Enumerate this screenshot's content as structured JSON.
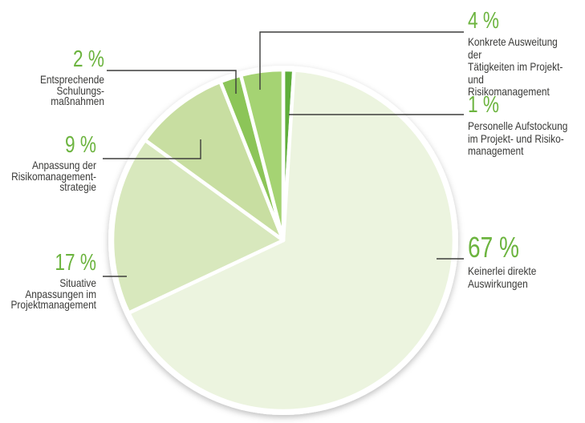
{
  "figure": {
    "background": "#ffffff",
    "accent_green": "#6cb43f",
    "text_color": "#3a3a38",
    "leader_line_color": "#3d3d3b"
  },
  "chart_data": {
    "type": "pie",
    "title": "",
    "legend": "none",
    "start_angle_deg": 0,
    "direction": "clockwise",
    "slice_gap_stroke": "#ffffff",
    "slices": [
      {
        "value": 1,
        "pct_display": "1 %",
        "desc": "Personelle Aufstockung\nim Projekt- und Risiko-\nmanagement",
        "color": "#5fae3a"
      },
      {
        "value": 67,
        "pct_display": "67 %",
        "desc": "Keinerlei direkte\nAuswirkungen",
        "color": "#ecf4df"
      },
      {
        "value": 17,
        "pct_display": "17 %",
        "desc": "Situative\nAnpassungen im\nProjektmanagement",
        "color": "#d8e8bd"
      },
      {
        "value": 9,
        "pct_display": "9 %",
        "desc": "Anpassung der\nRisikomanagement-\nstrategie",
        "color": "#c8dea1"
      },
      {
        "value": 2,
        "pct_display": "2 %",
        "desc": "Entsprechende\nSchulungs-\nmaßnahmen",
        "color": "#8cc558"
      },
      {
        "value": 4,
        "pct_display": "4 %",
        "desc": "Konkrete Ausweitung der\nTätigkeiten im Projekt- und\nRisikomanagement",
        "color": "#a5d373"
      }
    ]
  }
}
